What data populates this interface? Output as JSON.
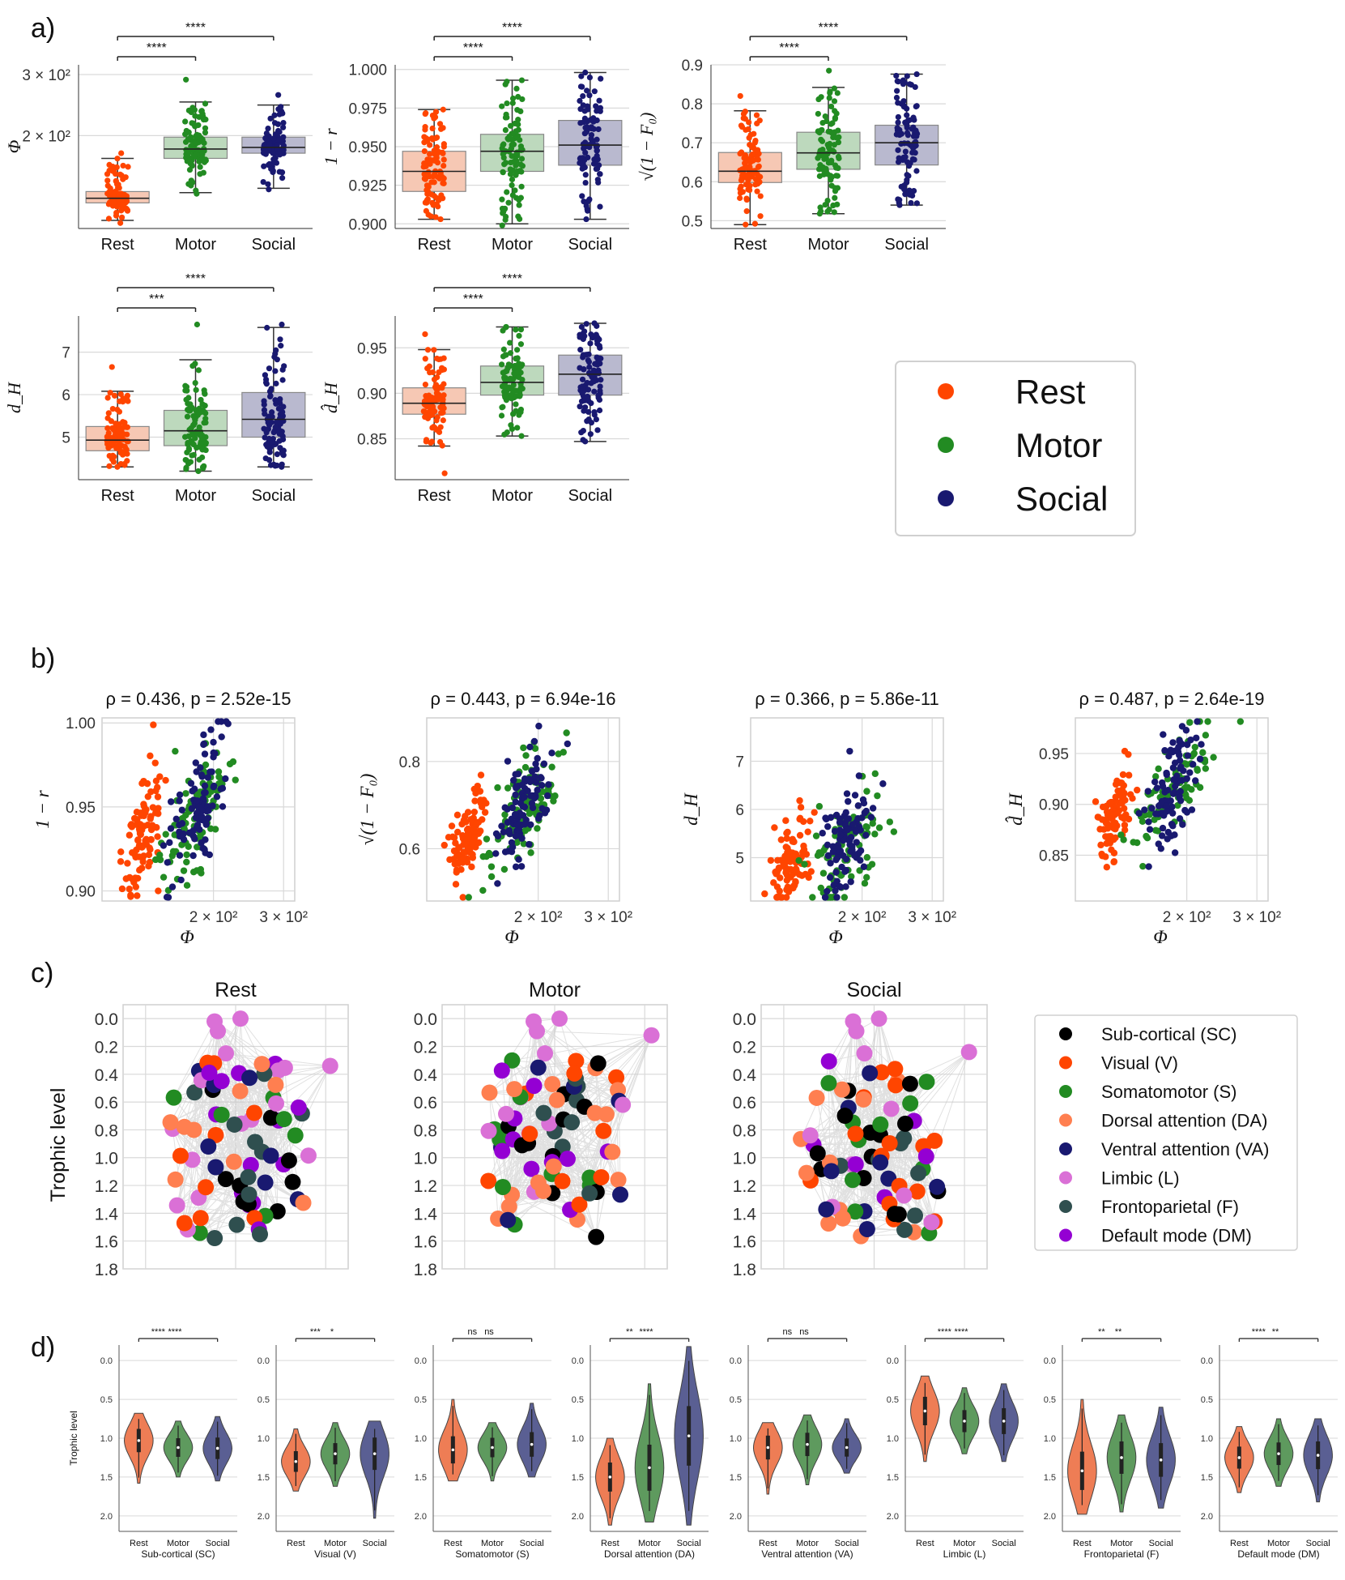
{
  "panel_labels": {
    "a": "a)",
    "b": "b)",
    "c": "c)",
    "d": "d)"
  },
  "colors": {
    "rest": "#ff4500",
    "motor": "#228b22",
    "social": "#191970",
    "rest_box": "#f6c8b4",
    "motor_box": "#bdd9bd",
    "social_box": "#b9b9cf",
    "rest_violin": "#ee7d55",
    "motor_violin": "#5e9a5e",
    "social_violin": "#5a5f93",
    "grid": "#d9d9d9",
    "edge": "#c8c8c8"
  },
  "chart_data": [
    {
      "type": "box",
      "panel": "a",
      "ylabel": "Φ",
      "yscale": "log",
      "ylim": [
        108,
        320
      ],
      "yticks": [
        {
          "v": 300,
          "label": "3 × 10²"
        },
        {
          "v": 200,
          "label": "2 × 10²"
        }
      ],
      "categories": [
        "Rest",
        "Motor",
        "Social"
      ],
      "boxes": [
        {
          "min": 114,
          "q1": 128,
          "median": 132,
          "q3": 138,
          "max": 172,
          "points_range": [
            112,
            178
          ]
        },
        {
          "min": 137,
          "q1": 172,
          "median": 183,
          "q3": 198,
          "max": 250,
          "points_range": [
            136,
            290
          ]
        },
        {
          "min": 141,
          "q1": 178,
          "median": 185,
          "q3": 198,
          "max": 245,
          "points_range": [
            140,
            262
          ]
        }
      ],
      "significance": [
        {
          "from": "Rest",
          "to": "Motor",
          "label": "****"
        },
        {
          "from": "Rest",
          "to": "Social",
          "label": "****"
        }
      ]
    },
    {
      "type": "box",
      "panel": "a",
      "ylabel": "1 − r",
      "ylim": [
        0.897,
        1.003
      ],
      "yticks": [
        {
          "v": 1.0,
          "label": "1.000"
        },
        {
          "v": 0.975,
          "label": "0.975"
        },
        {
          "v": 0.95,
          "label": "0.950"
        },
        {
          "v": 0.925,
          "label": "0.925"
        },
        {
          "v": 0.9,
          "label": "0.900"
        }
      ],
      "categories": [
        "Rest",
        "Motor",
        "Social"
      ],
      "boxes": [
        {
          "min": 0.903,
          "q1": 0.921,
          "median": 0.934,
          "q3": 0.947,
          "max": 0.974,
          "points_range": [
            0.903,
            0.974
          ]
        },
        {
          "min": 0.9,
          "q1": 0.934,
          "median": 0.947,
          "q3": 0.958,
          "max": 0.993,
          "points_range": [
            0.899,
            0.993
          ]
        },
        {
          "min": 0.903,
          "q1": 0.938,
          "median": 0.951,
          "q3": 0.967,
          "max": 0.998,
          "points_range": [
            0.903,
            0.998
          ]
        }
      ],
      "significance": [
        {
          "from": "Rest",
          "to": "Motor",
          "label": "****"
        },
        {
          "from": "Rest",
          "to": "Social",
          "label": "****"
        }
      ]
    },
    {
      "type": "box",
      "panel": "a",
      "ylabel": "√(1 − F₀)",
      "ylim": [
        0.48,
        0.9
      ],
      "yticks": [
        {
          "v": 0.9,
          "label": "0.9"
        },
        {
          "v": 0.8,
          "label": "0.8"
        },
        {
          "v": 0.7,
          "label": "0.7"
        },
        {
          "v": 0.6,
          "label": "0.6"
        },
        {
          "v": 0.5,
          "label": "0.5"
        }
      ],
      "categories": [
        "Rest",
        "Motor",
        "Social"
      ],
      "boxes": [
        {
          "min": 0.49,
          "q1": 0.598,
          "median": 0.627,
          "q3": 0.675,
          "max": 0.782,
          "points_range": [
            0.49,
            0.82
          ]
        },
        {
          "min": 0.518,
          "q1": 0.632,
          "median": 0.674,
          "q3": 0.727,
          "max": 0.842,
          "points_range": [
            0.518,
            0.885
          ]
        },
        {
          "min": 0.54,
          "q1": 0.643,
          "median": 0.7,
          "q3": 0.745,
          "max": 0.876,
          "points_range": [
            0.54,
            0.876
          ]
        }
      ],
      "significance": [
        {
          "from": "Rest",
          "to": "Motor",
          "label": "****"
        },
        {
          "from": "Rest",
          "to": "Social",
          "label": "****"
        }
      ]
    },
    {
      "type": "box",
      "panel": "a",
      "ylabel": "d_H",
      "ylim": [
        4.0,
        7.85
      ],
      "yticks": [
        {
          "v": 7,
          "label": "7"
        },
        {
          "v": 6,
          "label": "6"
        },
        {
          "v": 5,
          "label": "5"
        }
      ],
      "categories": [
        "Rest",
        "Motor",
        "Social"
      ],
      "boxes": [
        {
          "min": 4.3,
          "q1": 4.68,
          "median": 4.93,
          "q3": 5.25,
          "max": 6.08,
          "points_range": [
            4.3,
            6.65
          ]
        },
        {
          "min": 4.2,
          "q1": 4.8,
          "median": 5.15,
          "q3": 5.63,
          "max": 6.82,
          "points_range": [
            4.2,
            7.65
          ]
        },
        {
          "min": 4.3,
          "q1": 5.0,
          "median": 5.42,
          "q3": 6.05,
          "max": 7.58,
          "points_range": [
            4.3,
            7.65
          ]
        }
      ],
      "significance": [
        {
          "from": "Rest",
          "to": "Motor",
          "label": "***"
        },
        {
          "from": "Rest",
          "to": "Social",
          "label": "****"
        }
      ]
    },
    {
      "type": "box",
      "panel": "a",
      "ylabel": "d̂_H",
      "ylim": [
        0.805,
        0.985
      ],
      "yticks": [
        {
          "v": 0.95,
          "label": "0.95"
        },
        {
          "v": 0.9,
          "label": "0.90"
        },
        {
          "v": 0.85,
          "label": "0.85"
        }
      ],
      "categories": [
        "Rest",
        "Motor",
        "Social"
      ],
      "boxes": [
        {
          "min": 0.842,
          "q1": 0.877,
          "median": 0.889,
          "q3": 0.906,
          "max": 0.948,
          "points_range": [
            0.812,
            0.965
          ]
        },
        {
          "min": 0.853,
          "q1": 0.898,
          "median": 0.912,
          "q3": 0.93,
          "max": 0.973,
          "points_range": [
            0.853,
            0.973
          ]
        },
        {
          "min": 0.847,
          "q1": 0.898,
          "median": 0.921,
          "q3": 0.942,
          "max": 0.977,
          "points_range": [
            0.847,
            0.977
          ]
        }
      ],
      "significance": [
        {
          "from": "Rest",
          "to": "Motor",
          "label": "****"
        },
        {
          "from": "Rest",
          "to": "Social",
          "label": "****"
        }
      ]
    },
    {
      "type": "legend",
      "panel": "a",
      "entries": [
        "Rest",
        "Motor",
        "Social"
      ]
    },
    {
      "type": "scatter",
      "panel": "b",
      "title": "ρ = 0.436,  p = 2.52e-15",
      "xlabel": "Φ",
      "ylabel": "1 − r",
      "xscale": "log",
      "xlim": [
        105,
        320
      ],
      "xticks": [
        {
          "v": 200,
          "label": "2 × 10²"
        },
        {
          "v": 300,
          "label": "3 × 10²"
        }
      ],
      "ylim": [
        0.894,
        1.003
      ],
      "yticks": [
        {
          "v": 1.0,
          "label": "1.00"
        },
        {
          "v": 0.95,
          "label": "0.95"
        },
        {
          "v": 0.9,
          "label": "0.90"
        }
      ],
      "correlation": 0.436
    },
    {
      "type": "scatter",
      "panel": "b",
      "title": "ρ = 0.443,  p = 6.94e-16",
      "xlabel": "Φ",
      "ylabel": "√(1 − F₀)",
      "xscale": "log",
      "xlim": [
        105,
        320
      ],
      "xticks": [
        {
          "v": 200,
          "label": "2 × 10²"
        },
        {
          "v": 300,
          "label": "3 × 10²"
        }
      ],
      "ylim": [
        0.48,
        0.9
      ],
      "yticks": [
        {
          "v": 0.8,
          "label": "0.8"
        },
        {
          "v": 0.6,
          "label": "0.6"
        }
      ],
      "correlation": 0.443
    },
    {
      "type": "scatter",
      "panel": "b",
      "title": "ρ = 0.366,  p = 5.86e-11",
      "xlabel": "Φ",
      "ylabel": "d_H",
      "xscale": "log",
      "xlim": [
        105,
        320
      ],
      "xticks": [
        {
          "v": 200,
          "label": "2 × 10²"
        },
        {
          "v": 300,
          "label": "3 × 10²"
        }
      ],
      "ylim": [
        4.1,
        7.9
      ],
      "yticks": [
        {
          "v": 7,
          "label": "7"
        },
        {
          "v": 6,
          "label": "6"
        },
        {
          "v": 5,
          "label": "5"
        }
      ],
      "correlation": 0.366
    },
    {
      "type": "scatter",
      "panel": "b",
      "title": "ρ = 0.487,  p = 2.64e-19",
      "xlabel": "Φ",
      "ylabel": "d̂_H",
      "xscale": "log",
      "xlim": [
        105,
        320
      ],
      "xticks": [
        {
          "v": 200,
          "label": "2 × 10²"
        },
        {
          "v": 300,
          "label": "3 × 10²"
        }
      ],
      "ylim": [
        0.805,
        0.985
      ],
      "yticks": [
        {
          "v": 0.95,
          "label": "0.95"
        },
        {
          "v": 0.9,
          "label": "0.90"
        },
        {
          "v": 0.85,
          "label": "0.85"
        }
      ],
      "correlation": 0.487
    },
    {
      "type": "network",
      "panel": "c",
      "titles": [
        "Rest",
        "Motor",
        "Social"
      ],
      "ylabel": "Trophic level",
      "ylim": [
        1.8,
        -0.1
      ],
      "yticks": [
        {
          "v": 0.0,
          "label": "0.0"
        },
        {
          "v": 0.2,
          "label": "0.2"
        },
        {
          "v": 0.4,
          "label": "0.4"
        },
        {
          "v": 0.6,
          "label": "0.6"
        },
        {
          "v": 0.8,
          "label": "0.8"
        },
        {
          "v": 1.0,
          "label": "1.0"
        },
        {
          "v": 1.2,
          "label": "1.2"
        },
        {
          "v": 1.4,
          "label": "1.4"
        },
        {
          "v": 1.6,
          "label": "1.6"
        },
        {
          "v": 1.8,
          "label": "1.8"
        }
      ],
      "legend": [
        {
          "label": "Sub-cortical (SC)",
          "color": "#000000"
        },
        {
          "label": "Visual (V)",
          "color": "#ff4500"
        },
        {
          "label": "Somatomotor (S)",
          "color": "#228b22"
        },
        {
          "label": "Dorsal attention (DA)",
          "color": "#ff7f50"
        },
        {
          "label": "Ventral attention (VA)",
          "color": "#191970"
        },
        {
          "label": "Limbic (L)",
          "color": "#da70d6"
        },
        {
          "label": "Frontoparietal (F)",
          "color": "#2f4f4f"
        },
        {
          "label": "Default mode (DM)",
          "color": "#9400d3"
        }
      ]
    },
    {
      "type": "violin",
      "panel": "d",
      "ylabel": "Trophic level",
      "ylim": [
        2.2,
        -0.2
      ],
      "yticks": [
        {
          "v": 0.0,
          "label": "0.0"
        },
        {
          "v": 0.5,
          "label": "0.5"
        },
        {
          "v": 1.0,
          "label": "1.0"
        },
        {
          "v": 1.5,
          "label": "1.5"
        },
        {
          "v": 2.0,
          "label": "2.0"
        }
      ],
      "categories": [
        "Rest",
        "Motor",
        "Social"
      ],
      "groups": [
        {
          "name": "Sub-cortical (SC)",
          "sig": [
            "****",
            "****"
          ],
          "medians": [
            1.03,
            1.12,
            1.13
          ],
          "ranges": [
            [
              0.68,
              1.58
            ],
            [
              0.78,
              1.5
            ],
            [
              0.72,
              1.55
            ]
          ]
        },
        {
          "name": "Visual (V)",
          "sig": [
            "***",
            "*"
          ],
          "medians": [
            1.3,
            1.2,
            1.2
          ],
          "ranges": [
            [
              0.88,
              1.68
            ],
            [
              0.8,
              1.62
            ],
            [
              0.78,
              2.03
            ]
          ]
        },
        {
          "name": "Somatomotor (S)",
          "sig": [
            "ns",
            "ns"
          ],
          "medians": [
            1.15,
            1.12,
            1.08
          ],
          "ranges": [
            [
              0.5,
              1.55
            ],
            [
              0.8,
              1.55
            ],
            [
              0.55,
              1.5
            ]
          ]
        },
        {
          "name": "Dorsal attention (DA)",
          "sig": [
            "**",
            "****"
          ],
          "medians": [
            1.5,
            1.38,
            0.97
          ],
          "ranges": [
            [
              1.0,
              2.12
            ],
            [
              0.3,
              2.08
            ],
            [
              -0.18,
              2.12
            ]
          ]
        },
        {
          "name": "Ventral attention (VA)",
          "sig": [
            "ns",
            "ns"
          ],
          "medians": [
            1.12,
            1.08,
            1.12
          ],
          "ranges": [
            [
              0.8,
              1.72
            ],
            [
              0.7,
              1.6
            ],
            [
              0.75,
              1.45
            ]
          ]
        },
        {
          "name": "Limbic (L)",
          "sig": [
            "****",
            "****"
          ],
          "medians": [
            0.65,
            0.78,
            0.78
          ],
          "ranges": [
            [
              0.2,
              1.3
            ],
            [
              0.35,
              1.2
            ],
            [
              0.3,
              1.3
            ]
          ]
        },
        {
          "name": "Frontoparietal (F)",
          "sig": [
            "**",
            "**"
          ],
          "medians": [
            1.42,
            1.25,
            1.28
          ],
          "ranges": [
            [
              0.5,
              1.98
            ],
            [
              0.7,
              1.95
            ],
            [
              0.6,
              1.9
            ]
          ]
        },
        {
          "name": "Default mode (DM)",
          "sig": [
            "****",
            "**"
          ],
          "medians": [
            1.25,
            1.2,
            1.22
          ],
          "ranges": [
            [
              0.85,
              1.7
            ],
            [
              0.75,
              1.62
            ],
            [
              0.75,
              1.82
            ]
          ]
        }
      ]
    }
  ]
}
